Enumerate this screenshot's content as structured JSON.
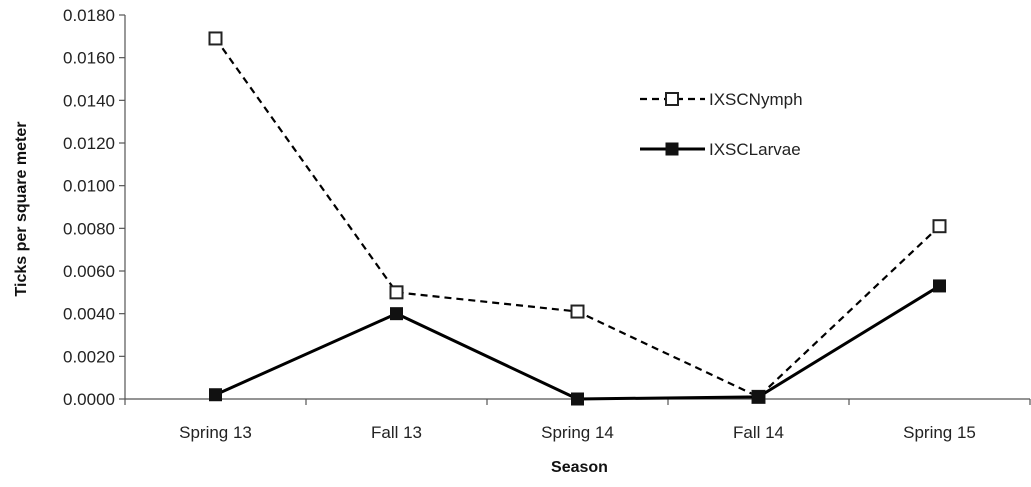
{
  "chart_data": {
    "type": "line",
    "title": "",
    "xlabel": "Season",
    "ylabel": "Ticks per square meter",
    "categories": [
      "Spring 13",
      "Fall 13",
      "Spring 14",
      "Fall 14",
      "Spring 15"
    ],
    "ylim": [
      0,
      0.018
    ],
    "yticks": [
      "0.0000",
      "0.0020",
      "0.0040",
      "0.0060",
      "0.0080",
      "0.0100",
      "0.0120",
      "0.0140",
      "0.0160",
      "0.0180"
    ],
    "grid": false,
    "legend_position": "top-right",
    "series": [
      {
        "name": "IXSCNymph",
        "values": [
          0.0169,
          0.005,
          0.0041,
          0.0001,
          0.0081
        ],
        "line_style": "dashed",
        "marker": "open-square",
        "color": "#000000"
      },
      {
        "name": "IXSCLarvae",
        "values": [
          0.0002,
          0.004,
          0.0,
          0.0001,
          0.0053
        ],
        "line_style": "solid",
        "marker": "filled-square",
        "color": "#000000"
      }
    ]
  }
}
